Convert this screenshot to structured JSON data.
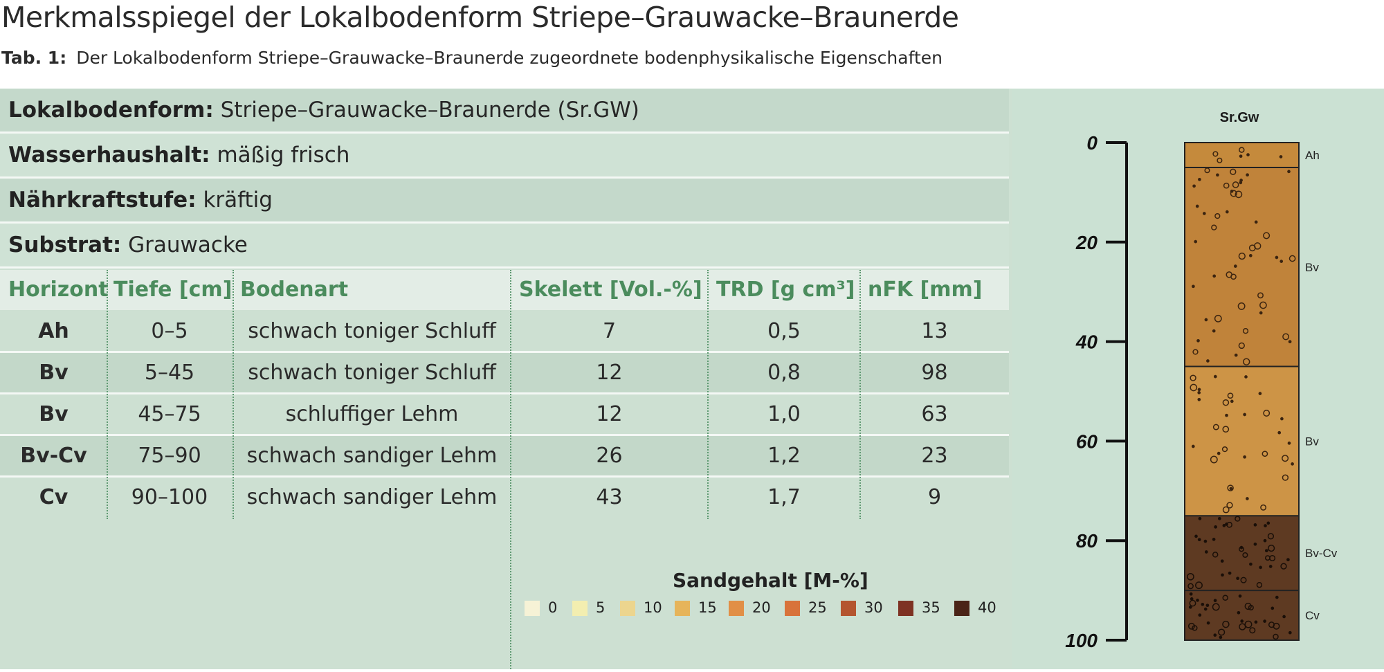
{
  "title": "Merkmalsspiegel der Lokalbodenform Striepe–Grauwacke–Braunerde",
  "subtitle": {
    "label": "Tab. 1:",
    "text": "Der Lokalbodenform Striepe–Grauwacke–Braunerde zugeordnete bodenphysikalische Eigenschaften"
  },
  "info": [
    {
      "key": "Lokalbodenform:",
      "value": "Striepe–Grauwacke–Braunerde (Sr.GW)"
    },
    {
      "key": "Wasserhaushalt:",
      "value": "mäßig frisch"
    },
    {
      "key": "Nährkraftstufe:",
      "value": "kräftig"
    },
    {
      "key": "Substrat:",
      "value": "Grauwacke"
    }
  ],
  "table": {
    "headers": [
      "Horizont",
      "Tiefe [cm]",
      "Bodenart",
      "Skelett [Vol.-%]",
      "TRD [g cm³]",
      "nFK [mm]"
    ],
    "rows": [
      [
        "Ah",
        "0–5",
        "schwach toniger Schluff",
        "7",
        "0,5",
        "13"
      ],
      [
        "Bv",
        "5–45",
        "schwach toniger Schluff",
        "12",
        "0,8",
        "98"
      ],
      [
        "Bv",
        "45–75",
        "schluffiger Lehm",
        "12",
        "1,0",
        "63"
      ],
      [
        "Bv-Cv",
        "75–90",
        "schwach sandiger Lehm",
        "26",
        "1,2",
        "23"
      ],
      [
        "Cv",
        "90–100",
        "schwach sandiger Lehm",
        "43",
        "1,7",
        "9"
      ]
    ]
  },
  "legend": {
    "title": "Sandgehalt [M-%]",
    "items": [
      {
        "label": "0",
        "color": "#f6f2d6"
      },
      {
        "label": "5",
        "color": "#f3eeb0"
      },
      {
        "label": "10",
        "color": "#ecd58e"
      },
      {
        "label": "15",
        "color": "#e6b45a"
      },
      {
        "label": "20",
        "color": "#e18f46"
      },
      {
        "label": "25",
        "color": "#d8733b"
      },
      {
        "label": "30",
        "color": "#b4552f"
      },
      {
        "label": "35",
        "color": "#7e3223"
      },
      {
        "label": "40",
        "color": "#4a2417"
      }
    ]
  },
  "profile": {
    "label": "Sr.Gw",
    "depth_ticks": [
      "0",
      "20",
      "40",
      "60",
      "80",
      "100"
    ],
    "horizons": [
      {
        "name": "Ah",
        "top": 0,
        "bottom": 5,
        "color": "#c58a3c"
      },
      {
        "name": "Bv",
        "top": 5,
        "bottom": 45,
        "color": "#c0833a"
      },
      {
        "name": "Bv",
        "top": 45,
        "bottom": 75,
        "color": "#cd9446"
      },
      {
        "name": "Bv-Cv",
        "top": 75,
        "bottom": 90,
        "color": "#5e3a22"
      },
      {
        "name": "Cv",
        "top": 90,
        "bottom": 100,
        "color": "#5e3a22"
      }
    ]
  }
}
